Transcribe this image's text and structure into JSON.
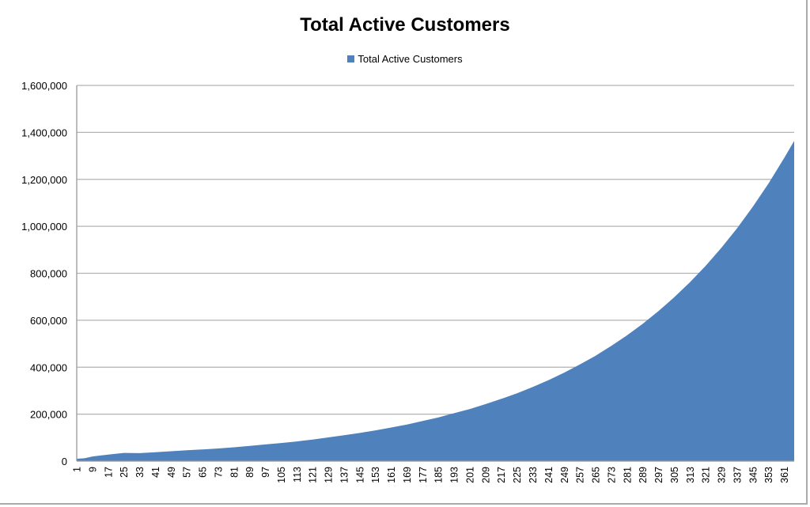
{
  "chart_data": {
    "type": "area",
    "title": "Total Active Customers",
    "xlabel": "",
    "ylabel": "",
    "legend_position": "top",
    "grid": true,
    "ylim": [
      0,
      1600000
    ],
    "xlim": [
      1,
      366
    ],
    "y_tick_labels": [
      "0",
      "200,000",
      "400,000",
      "600,000",
      "800,000",
      "1,000,000",
      "1,200,000",
      "1,400,000",
      "1,600,000"
    ],
    "y_ticks": [
      0,
      200000,
      400000,
      600000,
      800000,
      1000000,
      1200000,
      1400000,
      1600000
    ],
    "x_tick_labels": [
      "1",
      "9",
      "17",
      "25",
      "33",
      "41",
      "49",
      "57",
      "65",
      "73",
      "81",
      "89",
      "97",
      "105",
      "113",
      "121",
      "129",
      "137",
      "145",
      "153",
      "161",
      "169",
      "177",
      "185",
      "193",
      "201",
      "209",
      "217",
      "225",
      "233",
      "241",
      "249",
      "257",
      "265",
      "273",
      "281",
      "289",
      "297",
      "305",
      "313",
      "321",
      "329",
      "337",
      "345",
      "353",
      "361"
    ],
    "series": [
      {
        "name": "Total Active Customers",
        "color": "#4f81bd",
        "x": [
          1,
          5,
          9,
          17,
          25,
          33,
          41,
          49,
          57,
          65,
          73,
          81,
          89,
          97,
          105,
          113,
          121,
          129,
          137,
          145,
          153,
          161,
          169,
          177,
          185,
          193,
          201,
          209,
          217,
          225,
          233,
          241,
          249,
          257,
          265,
          273,
          281,
          289,
          297,
          305,
          313,
          321,
          329,
          337,
          345,
          353,
          361,
          366
        ],
        "y": [
          10000,
          12000,
          20000,
          28000,
          35000,
          34000,
          38000,
          42000,
          46000,
          50000,
          54000,
          59000,
          65000,
          71000,
          77000,
          84000,
          92000,
          101000,
          110000,
          120000,
          131000,
          143000,
          156000,
          171000,
          186000,
          204000,
          222000,
          243000,
          265000,
          289000,
          316000,
          345000,
          377000,
          412000,
          449000,
          491000,
          536000,
          585000,
          639000,
          698000,
          762000,
          832000,
          909000,
          992000,
          1084000,
          1183000,
          1292000,
          1364000
        ]
      }
    ]
  }
}
